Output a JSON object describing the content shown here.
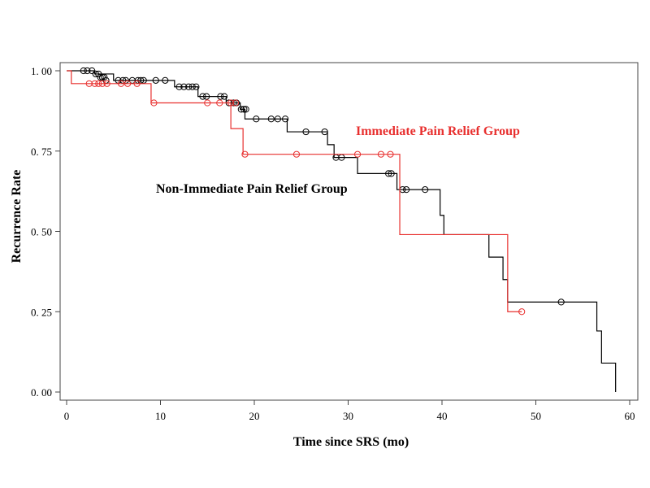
{
  "chart_data": {
    "type": "line",
    "title": "",
    "xlabel": "Time since SRS (mo)",
    "ylabel": "Recurrence Rate",
    "xlim": [
      0,
      60
    ],
    "ylim": [
      0,
      1
    ],
    "x_ticks": [
      "0",
      "10",
      "20",
      "30",
      "40",
      "50",
      "60"
    ],
    "y_ticks": [
      "0. 00",
      "0. 25",
      "0. 50",
      "0. 75",
      "1. 00"
    ],
    "legend": "inline labels",
    "grid": false,
    "series": [
      {
        "name": "Non-Immediate Pain Relief Group",
        "color": "#000000",
        "steps": [
          [
            0,
            1.0
          ],
          [
            3.0,
            0.99
          ],
          [
            5.0,
            0.97
          ],
          [
            8.0,
            0.97
          ],
          [
            11.5,
            0.95
          ],
          [
            14.0,
            0.92
          ],
          [
            17.0,
            0.9
          ],
          [
            18.5,
            0.88
          ],
          [
            19.0,
            0.85
          ],
          [
            23.5,
            0.81
          ],
          [
            27.8,
            0.77
          ],
          [
            28.5,
            0.73
          ],
          [
            31.0,
            0.68
          ],
          [
            34.5,
            0.68
          ],
          [
            35.2,
            0.63
          ],
          [
            39.8,
            0.55
          ],
          [
            40.2,
            0.49
          ],
          [
            45.0,
            0.42
          ],
          [
            46.5,
            0.35
          ],
          [
            47.0,
            0.28
          ],
          [
            56.5,
            0.19
          ],
          [
            57.0,
            0.09
          ],
          [
            58.5,
            0.0
          ]
        ],
        "end_x": 58.5,
        "censored": [
          [
            1.8,
            1.0
          ],
          [
            2.2,
            1.0
          ],
          [
            2.7,
            1.0
          ],
          [
            3.1,
            0.99
          ],
          [
            3.4,
            0.99
          ],
          [
            3.6,
            0.98
          ],
          [
            3.8,
            0.98
          ],
          [
            4.0,
            0.98
          ],
          [
            4.2,
            0.97
          ],
          [
            5.5,
            0.97
          ],
          [
            6.0,
            0.97
          ],
          [
            6.3,
            0.97
          ],
          [
            7.0,
            0.97
          ],
          [
            7.6,
            0.97
          ],
          [
            7.9,
            0.97
          ],
          [
            8.2,
            0.97
          ],
          [
            9.5,
            0.97
          ],
          [
            10.5,
            0.97
          ],
          [
            12.0,
            0.95
          ],
          [
            12.5,
            0.95
          ],
          [
            13.0,
            0.95
          ],
          [
            13.4,
            0.95
          ],
          [
            13.8,
            0.95
          ],
          [
            14.5,
            0.92
          ],
          [
            14.9,
            0.92
          ],
          [
            16.4,
            0.92
          ],
          [
            16.8,
            0.92
          ],
          [
            17.3,
            0.9
          ],
          [
            17.8,
            0.9
          ],
          [
            18.1,
            0.9
          ],
          [
            18.6,
            0.88
          ],
          [
            18.9,
            0.88
          ],
          [
            19.1,
            0.88
          ],
          [
            20.2,
            0.85
          ],
          [
            21.8,
            0.85
          ],
          [
            22.5,
            0.85
          ],
          [
            23.3,
            0.85
          ],
          [
            25.5,
            0.81
          ],
          [
            27.5,
            0.81
          ],
          [
            28.7,
            0.73
          ],
          [
            29.3,
            0.73
          ],
          [
            34.3,
            0.68
          ],
          [
            34.6,
            0.68
          ],
          [
            35.8,
            0.63
          ],
          [
            36.2,
            0.63
          ],
          [
            38.2,
            0.63
          ],
          [
            52.7,
            0.28
          ]
        ]
      },
      {
        "name": "Immediate Pain Relief Group",
        "color": "#e8302f",
        "steps": [
          [
            0,
            1.0
          ],
          [
            0.5,
            0.96
          ],
          [
            9.0,
            0.9
          ],
          [
            17.5,
            0.82
          ],
          [
            18.8,
            0.74
          ],
          [
            35.5,
            0.49
          ],
          [
            47.0,
            0.25
          ]
        ],
        "end_x": 48.5,
        "censored": [
          [
            2.4,
            0.96
          ],
          [
            3.0,
            0.96
          ],
          [
            3.4,
            0.96
          ],
          [
            3.8,
            0.96
          ],
          [
            4.3,
            0.96
          ],
          [
            5.8,
            0.96
          ],
          [
            6.5,
            0.96
          ],
          [
            7.5,
            0.96
          ],
          [
            9.3,
            0.9
          ],
          [
            15.0,
            0.9
          ],
          [
            16.3,
            0.9
          ],
          [
            17.5,
            0.9
          ],
          [
            18.0,
            0.9
          ],
          [
            19.0,
            0.74
          ],
          [
            24.5,
            0.74
          ],
          [
            31.0,
            0.74
          ],
          [
            33.5,
            0.74
          ],
          [
            34.5,
            0.74
          ],
          [
            48.5,
            0.25
          ]
        ]
      }
    ],
    "annotations": {
      "immediate_label": "Immediate Pain Relief Group",
      "non_immediate_label": "Non-Immediate Pain Relief Group"
    }
  }
}
